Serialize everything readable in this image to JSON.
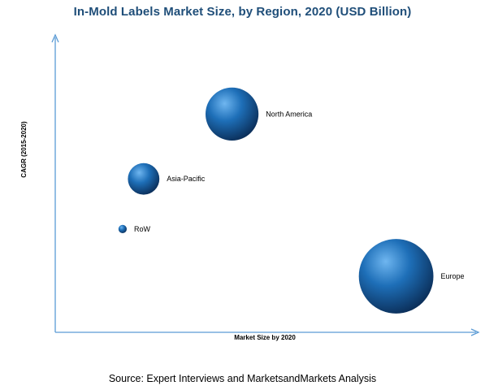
{
  "chart_data": {
    "type": "scatter",
    "title": "In-Mold Labels Market Size, by Region, 2020 (USD Billion)",
    "xlabel": "Market Size by 2020",
    "ylabel": "CAGR (2015-2020)",
    "grid": false,
    "legend": "none",
    "x_ticks_printed": false,
    "y_ticks_printed": false,
    "xlim": [
      0,
      10
    ],
    "ylim": [
      0,
      10
    ],
    "series": [
      {
        "points": [
          {
            "label": "North America",
            "x": 4.2,
            "y": 7.4,
            "size": 3.2
          },
          {
            "label": "Asia-Pacific",
            "x": 2.1,
            "y": 5.2,
            "size": 1.9
          },
          {
            "label": "RoW",
            "x": 1.6,
            "y": 3.5,
            "size": 0.5
          },
          {
            "label": "Europe",
            "x": 8.1,
            "y": 1.9,
            "size": 4.5
          }
        ]
      }
    ],
    "colors": {
      "bubble_light": "#6fb6f0",
      "bubble_mid": "#1e6fb8",
      "bubble_dark": "#0b2f5a",
      "axis": "#5b9bd5",
      "title": "#1f4e79"
    }
  },
  "source": "Source: Expert Interviews and MarketsandMarkets Analysis"
}
